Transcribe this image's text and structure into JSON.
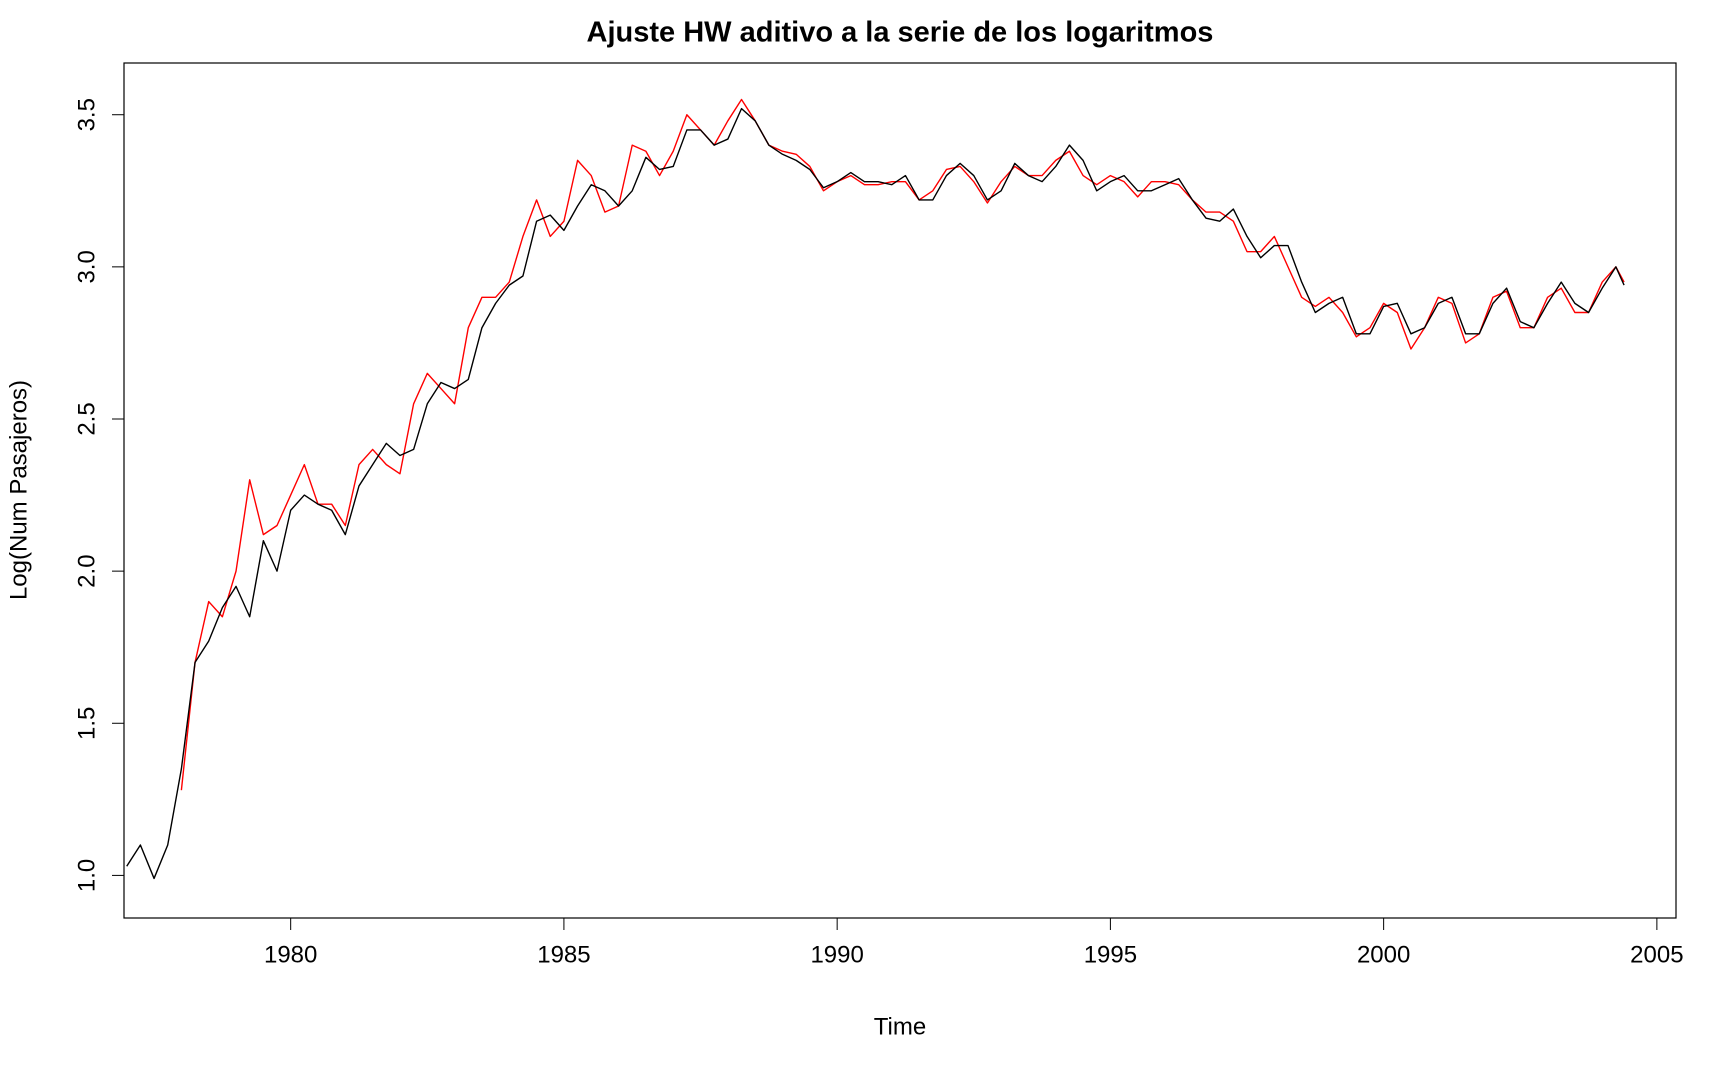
{
  "chart_data": {
    "type": "line",
    "title": "Ajuste HW aditivo a la serie de los logaritmos",
    "x_label": "Time",
    "y_label": "Log(Num Pasajeros)",
    "xlim": [
      1976.95,
      2005.35
    ],
    "ylim": [
      0.86,
      3.67
    ],
    "xticks": [
      1980,
      1985,
      1990,
      1995,
      2000,
      2005
    ],
    "yticks": [
      {
        "value": 1,
        "label": "1.0"
      },
      1.5,
      {
        "value": 2,
        "label": "2.0"
      },
      2.5,
      {
        "value": 3,
        "label": "3.0"
      },
      3.5
    ],
    "x": [
      1977,
      1977.25,
      1977.5,
      1977.75,
      1978,
      1978.25,
      1978.5,
      1978.75,
      1979,
      1979.25,
      1979.5,
      1979.75,
      1980,
      1980.25,
      1980.5,
      1980.75,
      1981,
      1981.25,
      1981.5,
      1981.75,
      1982,
      1982.25,
      1982.5,
      1982.75,
      1983,
      1983.25,
      1983.5,
      1983.75,
      1984,
      1984.25,
      1984.5,
      1984.75,
      1985,
      1985.25,
      1985.5,
      1985.75,
      1986,
      1986.25,
      1986.5,
      1986.75,
      1987,
      1987.25,
      1987.5,
      1987.75,
      1988,
      1988.25,
      1988.5,
      1988.75,
      1989,
      1989.25,
      1989.5,
      1989.75,
      1990,
      1990.25,
      1990.5,
      1990.75,
      1991,
      1991.25,
      1991.5,
      1991.75,
      1992,
      1992.25,
      1992.5,
      1992.75,
      1993,
      1993.25,
      1993.5,
      1993.75,
      1994,
      1994.25,
      1994.5,
      1994.75,
      1995,
      1995.25,
      1995.5,
      1995.75,
      1996,
      1996.25,
      1996.5,
      1996.75,
      1997,
      1997.25,
      1997.5,
      1997.75,
      1998,
      1998.25,
      1998.5,
      1998.75,
      1999,
      1999.25,
      1999.5,
      1999.75,
      2000,
      2000.25,
      2000.5,
      2000.75,
      2001,
      2001.25,
      2001.5,
      2001.75,
      2002,
      2002.25,
      2002.5,
      2002.75,
      2003,
      2003.25,
      2003.5,
      2003.75,
      2004,
      2004.25,
      2004.4
    ],
    "series": [
      {
        "color": "#000000",
        "values": [
          1.03,
          1.1,
          0.99,
          1.1,
          1.35,
          1.7,
          1.77,
          1.88,
          1.95,
          1.85,
          2.1,
          2.0,
          2.2,
          2.25,
          2.22,
          2.2,
          2.12,
          2.28,
          2.35,
          2.42,
          2.38,
          2.4,
          2.55,
          2.62,
          2.6,
          2.63,
          2.8,
          2.88,
          2.94,
          2.97,
          3.15,
          3.17,
          3.12,
          3.2,
          3.27,
          3.25,
          3.2,
          3.25,
          3.36,
          3.32,
          3.33,
          3.45,
          3.45,
          3.4,
          3.42,
          3.52,
          3.48,
          3.4,
          3.37,
          3.35,
          3.32,
          3.26,
          3.28,
          3.31,
          3.28,
          3.28,
          3.27,
          3.3,
          3.22,
          3.22,
          3.3,
          3.34,
          3.3,
          3.22,
          3.25,
          3.34,
          3.3,
          3.28,
          3.33,
          3.4,
          3.35,
          3.25,
          3.28,
          3.3,
          3.25,
          3.25,
          3.27,
          3.29,
          3.22,
          3.16,
          3.15,
          3.19,
          3.1,
          3.03,
          3.07,
          3.07,
          2.95,
          2.85,
          2.88,
          2.9,
          2.78,
          2.78,
          2.87,
          2.88,
          2.78,
          2.8,
          2.88,
          2.9,
          2.78,
          2.78,
          2.88,
          2.93,
          2.82,
          2.8,
          2.88,
          2.95,
          2.88,
          2.85,
          2.93,
          3.0,
          2.94
        ]
      },
      {
        "color": "#ff0000",
        "values": [
          null,
          null,
          null,
          null,
          1.28,
          1.7,
          1.9,
          1.85,
          2.0,
          2.3,
          2.12,
          2.15,
          2.25,
          2.35,
          2.22,
          2.22,
          2.15,
          2.35,
          2.4,
          2.35,
          2.32,
          2.55,
          2.65,
          2.6,
          2.55,
          2.8,
          2.9,
          2.9,
          2.95,
          3.1,
          3.22,
          3.1,
          3.15,
          3.35,
          3.3,
          3.18,
          3.2,
          3.4,
          3.38,
          3.3,
          3.38,
          3.5,
          3.45,
          3.4,
          3.48,
          3.55,
          3.48,
          3.4,
          3.38,
          3.37,
          3.33,
          3.25,
          3.28,
          3.3,
          3.27,
          3.27,
          3.28,
          3.28,
          3.22,
          3.25,
          3.32,
          3.33,
          3.28,
          3.21,
          3.28,
          3.33,
          3.3,
          3.3,
          3.35,
          3.38,
          3.3,
          3.27,
          3.3,
          3.28,
          3.23,
          3.28,
          3.28,
          3.27,
          3.22,
          3.18,
          3.18,
          3.15,
          3.05,
          3.05,
          3.1,
          3.0,
          2.9,
          2.87,
          2.9,
          2.85,
          2.77,
          2.8,
          2.88,
          2.85,
          2.73,
          2.8,
          2.9,
          2.88,
          2.75,
          2.78,
          2.9,
          2.92,
          2.8,
          2.8,
          2.9,
          2.93,
          2.85,
          2.85,
          2.95,
          3.0,
          2.95
        ]
      }
    ]
  }
}
